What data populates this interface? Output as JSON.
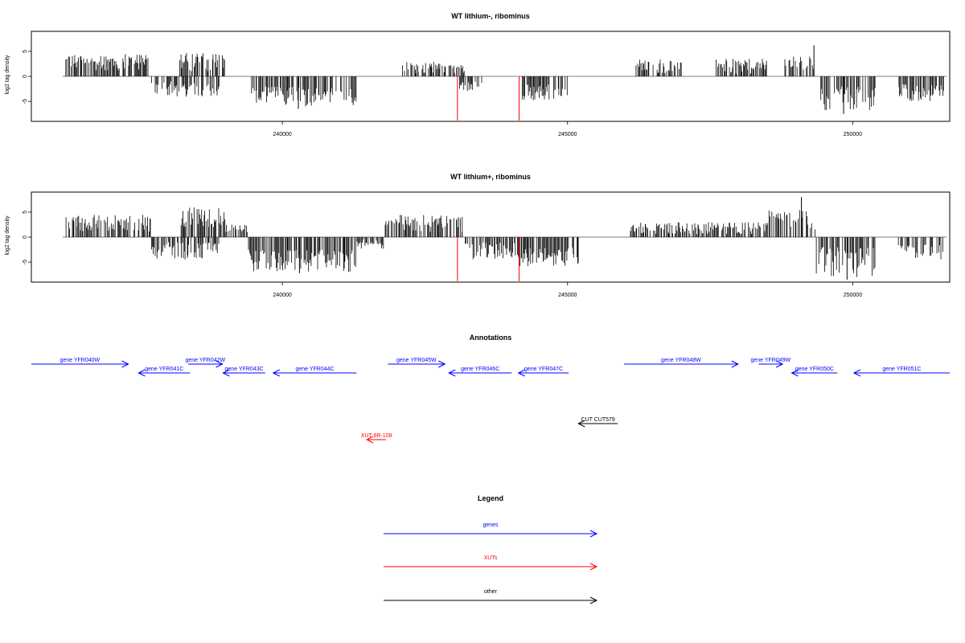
{
  "chart_data": [
    {
      "type": "bar",
      "title": "WT lithium-, ribominus",
      "ylabel": "log2 tag density",
      "xlabel": "",
      "xlim": [
        235600,
        251700
      ],
      "ylim": [
        -9,
        9
      ],
      "xticks": [
        240000,
        245000,
        250000
      ],
      "yticks": [
        5,
        0,
        -5
      ],
      "grid": false,
      "bar_color": "#000000",
      "highlight_color": "#ff0000",
      "segments": [
        {
          "start": 236200,
          "end": 237650,
          "min": 1.2,
          "max": 4.5
        },
        {
          "start": 237700,
          "end": 238900,
          "min": -4.2,
          "max": -1.0
        },
        {
          "start": 238200,
          "end": 239000,
          "min": 1.0,
          "max": 4.8
        },
        {
          "start": 239450,
          "end": 241300,
          "min": -6.0,
          "max": -2.0
        },
        {
          "start": 242100,
          "end": 243200,
          "min": 0.5,
          "max": 3.0
        },
        {
          "start": 243100,
          "end": 243500,
          "min": -3.0,
          "max": -0.8
        },
        {
          "start": 244200,
          "end": 245000,
          "min": -5.0,
          "max": -1.5
        },
        {
          "start": 246200,
          "end": 247000,
          "min": 0.6,
          "max": 3.5
        },
        {
          "start": 247600,
          "end": 248500,
          "min": 0.5,
          "max": 3.5
        },
        {
          "start": 248800,
          "end": 249350,
          "min": 1.0,
          "max": 4.0
        },
        {
          "start": 249400,
          "end": 250400,
          "min": -7.0,
          "max": -2.0
        },
        {
          "start": 250800,
          "end": 251600,
          "min": -5.0,
          "max": -1.5
        }
      ],
      "peaks": [
        {
          "x": 249320,
          "y": 6.2
        },
        {
          "x": 240280,
          "y": -6.5
        },
        {
          "x": 249840,
          "y": -7.5
        }
      ],
      "highlights": [
        {
          "x": 243070,
          "y": -8.8
        },
        {
          "x": 244150,
          "y": -8.8
        }
      ]
    },
    {
      "type": "bar",
      "title": "WT lithium+, ribominus",
      "ylabel": "log2 tag density",
      "xlabel": "",
      "xlim": [
        235600,
        251700
      ],
      "ylim": [
        -9,
        9
      ],
      "xticks": [
        240000,
        245000,
        250000
      ],
      "yticks": [
        5,
        0,
        -5
      ],
      "grid": false,
      "bar_color": "#000000",
      "highlight_color": "#ff0000",
      "segments": [
        {
          "start": 236200,
          "end": 237700,
          "min": 1.0,
          "max": 4.5
        },
        {
          "start": 237700,
          "end": 238900,
          "min": -4.5,
          "max": -1.0
        },
        {
          "start": 238200,
          "end": 239000,
          "min": 2.0,
          "max": 6.0
        },
        {
          "start": 239000,
          "end": 239400,
          "min": 0.5,
          "max": 2.5
        },
        {
          "start": 239400,
          "end": 241300,
          "min": -7.0,
          "max": -2.5
        },
        {
          "start": 241300,
          "end": 241800,
          "min": -2.5,
          "max": -0.5
        },
        {
          "start": 241800,
          "end": 243200,
          "min": 1.0,
          "max": 4.5
        },
        {
          "start": 243200,
          "end": 244100,
          "min": -4.5,
          "max": -1.0
        },
        {
          "start": 244100,
          "end": 245200,
          "min": -6.0,
          "max": -2.0
        },
        {
          "start": 246100,
          "end": 248500,
          "min": 0.5,
          "max": 3.0
        },
        {
          "start": 248500,
          "end": 249350,
          "min": 1.5,
          "max": 5.5
        },
        {
          "start": 249350,
          "end": 250400,
          "min": -8.0,
          "max": -2.0
        },
        {
          "start": 250800,
          "end": 251600,
          "min": -5.0,
          "max": -1.5
        }
      ],
      "peaks": [
        {
          "x": 249100,
          "y": 8.0
        },
        {
          "x": 249900,
          "y": -8.5
        },
        {
          "x": 240300,
          "y": -7.2
        }
      ],
      "highlights": [
        {
          "x": 243070,
          "y": -8.8
        },
        {
          "x": 244150,
          "y": -8.8
        }
      ]
    }
  ],
  "annotations": {
    "title": "Annotations",
    "xlim": [
      235600,
      251700
    ],
    "features": [
      {
        "label": "gene YFR040W",
        "start": 235600,
        "end": 237300,
        "strand": "+",
        "color": "#0000ff",
        "row": 0
      },
      {
        "label": "gene YFR041C",
        "start": 237480,
        "end": 238380,
        "strand": "-",
        "color": "#0000ff",
        "row": 1
      },
      {
        "label": "gene YFR042W",
        "start": 238350,
        "end": 238950,
        "strand": "+",
        "color": "#0000ff",
        "row": 0
      },
      {
        "label": "gene YFR043C",
        "start": 238960,
        "end": 239700,
        "strand": "-",
        "color": "#0000ff",
        "row": 1
      },
      {
        "label": "gene YFR044C",
        "start": 239840,
        "end": 241300,
        "strand": "-",
        "color": "#0000ff",
        "row": 1
      },
      {
        "label": "gene YFR045W",
        "start": 241850,
        "end": 242850,
        "strand": "+",
        "color": "#0000ff",
        "row": 0
      },
      {
        "label": "gene YFR046C",
        "start": 242920,
        "end": 244020,
        "strand": "-",
        "color": "#0000ff",
        "row": 1
      },
      {
        "label": "gene YFR047C",
        "start": 244140,
        "end": 245020,
        "strand": "-",
        "color": "#0000ff",
        "row": 1
      },
      {
        "label": "gene YFR048W",
        "start": 245990,
        "end": 247990,
        "strand": "+",
        "color": "#0000ff",
        "row": 0
      },
      {
        "label": "gene YFR049W",
        "start": 248350,
        "end": 248770,
        "strand": "+",
        "color": "#0000ff",
        "row": 0
      },
      {
        "label": "gene YFR050C",
        "start": 248930,
        "end": 249730,
        "strand": "-",
        "color": "#0000ff",
        "row": 1
      },
      {
        "label": "gene YFR051C",
        "start": 250020,
        "end": 251700,
        "strand": "-",
        "color": "#0000ff",
        "row": 1
      },
      {
        "label": "CUT CUT579",
        "start": 245190,
        "end": 245880,
        "strand": "-",
        "color": "#000000",
        "row": 2
      },
      {
        "label": "XUT 6R-108",
        "start": 241480,
        "end": 241820,
        "strand": "-",
        "color": "#ff0000",
        "row": 3
      }
    ]
  },
  "legend": {
    "title": "Legend",
    "items": [
      {
        "label": "genes",
        "color": "#0000ff"
      },
      {
        "label": "XUTs",
        "color": "#ff0000"
      },
      {
        "label": "other",
        "color": "#000000"
      }
    ]
  }
}
